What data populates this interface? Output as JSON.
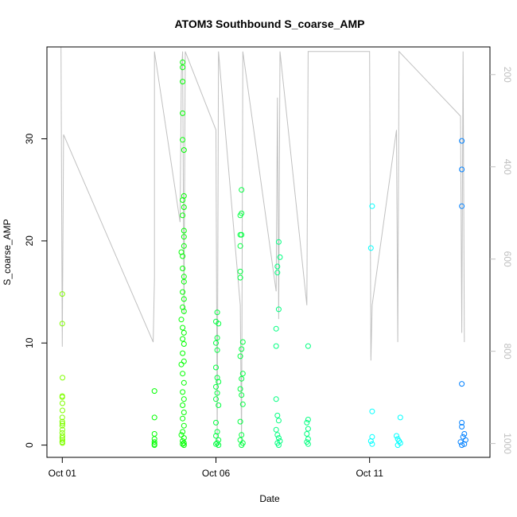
{
  "chart_data": {
    "type": "scatter",
    "title": "ATOM3 Southbound S_coarse_AMP",
    "xlabel": "Date",
    "ylabel": "S_coarse_AMP",
    "xlim": [
      "2016-09-30T12:00",
      "2016-10-14T22:00"
    ],
    "ylim": [
      -1.2,
      39
    ],
    "x_ticks": [
      {
        "date": "2016-10-01T00:00",
        "label": "Oct 01"
      },
      {
        "date": "2016-10-06T00:00",
        "label": "Oct 06"
      },
      {
        "date": "2016-10-11T00:00",
        "label": "Oct 11"
      }
    ],
    "y_ticks": [
      0,
      10,
      20,
      30
    ],
    "y2_label": "",
    "y2_ticks": [
      200,
      400,
      600,
      800,
      1000
    ],
    "y2_lim": [
      1030,
      140
    ],
    "y2_reversed": true,
    "grid": false,
    "legend": "none",
    "marker": "open-circle",
    "colors": {
      "points_by_time": [
        "#80ff00",
        "#00ff00",
        "#00ff80",
        "#00ffff",
        "#0080ff"
      ],
      "secondary_line": "#c0c0c0"
    },
    "series": [
      {
        "color": "#80ff00",
        "points": [
          [
            "2016-10-01T00:00",
            14.8
          ],
          [
            "2016-10-01T00:00",
            11.9
          ],
          [
            "2016-10-01T00:10",
            6.6
          ],
          [
            "2016-10-01T00:00",
            4.8
          ],
          [
            "2016-10-01T00:00",
            4.7
          ],
          [
            "2016-10-01T00:05",
            4.1
          ],
          [
            "2016-10-01T00:05",
            3.4
          ],
          [
            "2016-10-01T00:00",
            2.7
          ],
          [
            "2016-10-01T00:00",
            2.3
          ],
          [
            "2016-10-01T00:05",
            2.1
          ],
          [
            "2016-10-01T00:00",
            1.9
          ],
          [
            "2016-10-01T00:05",
            1.5
          ],
          [
            "2016-10-01T00:00",
            1.2
          ],
          [
            "2016-10-01T00:05",
            0.9
          ],
          [
            "2016-10-01T00:00",
            0.7
          ],
          [
            "2016-10-01T00:05",
            0.5
          ],
          [
            "2016-10-01T00:00",
            0.3
          ],
          [
            "2016-10-01T00:05",
            0.2
          ]
        ]
      },
      {
        "color": "#00ff00",
        "points": [
          [
            "2016-10-04T00:00",
            5.3
          ],
          [
            "2016-10-04T00:00",
            2.7
          ],
          [
            "2016-10-04T00:00",
            1.1
          ],
          [
            "2016-10-04T00:00",
            0.6
          ],
          [
            "2016-10-04T00:00",
            0.3
          ],
          [
            "2016-10-04T00:00",
            0.1
          ],
          [
            "2016-10-04T00:00",
            0.0
          ],
          [
            "2016-10-04T22:00",
            37.5
          ],
          [
            "2016-10-04T22:00",
            37.0
          ],
          [
            "2016-10-04T22:00",
            35.6
          ],
          [
            "2016-10-04T22:00",
            32.5
          ],
          [
            "2016-10-04T22:00",
            29.9
          ],
          [
            "2016-10-04T23:00",
            28.9
          ],
          [
            "2016-10-04T23:00",
            24.4
          ],
          [
            "2016-10-04T22:00",
            24.0
          ],
          [
            "2016-10-04T23:00",
            23.3
          ],
          [
            "2016-10-04T22:00",
            22.5
          ],
          [
            "2016-10-04T23:00",
            21.0
          ],
          [
            "2016-10-04T23:00",
            20.4
          ],
          [
            "2016-10-04T23:00",
            19.5
          ],
          [
            "2016-10-04T21:00",
            18.9
          ],
          [
            "2016-10-04T22:00",
            18.5
          ],
          [
            "2016-10-04T22:00",
            17.3
          ],
          [
            "2016-10-04T23:00",
            16.5
          ],
          [
            "2016-10-04T23:00",
            16.0
          ],
          [
            "2016-10-04T22:00",
            15.0
          ],
          [
            "2016-10-04T23:00",
            14.3
          ],
          [
            "2016-10-04T22:00",
            13.5
          ],
          [
            "2016-10-04T23:00",
            13.1
          ],
          [
            "2016-10-04T21:00",
            12.3
          ],
          [
            "2016-10-04T22:00",
            11.5
          ],
          [
            "2016-10-04T23:00",
            11.0
          ],
          [
            "2016-10-04T22:00",
            10.4
          ],
          [
            "2016-10-04T23:00",
            9.9
          ],
          [
            "2016-10-04T22:00",
            9.0
          ],
          [
            "2016-10-04T23:00",
            8.2
          ],
          [
            "2016-10-04T21:00",
            7.9
          ],
          [
            "2016-10-04T22:00",
            7.0
          ],
          [
            "2016-10-04T23:00",
            6.1
          ],
          [
            "2016-10-04T22:00",
            5.2
          ],
          [
            "2016-10-04T23:00",
            4.5
          ],
          [
            "2016-10-04T22:00",
            3.9
          ],
          [
            "2016-10-04T23:00",
            3.2
          ],
          [
            "2016-10-04T22:00",
            2.6
          ],
          [
            "2016-10-04T23:00",
            1.9
          ],
          [
            "2016-10-04T22:00",
            1.3
          ],
          [
            "2016-10-04T21:00",
            1.0
          ],
          [
            "2016-10-04T23:00",
            0.7
          ],
          [
            "2016-10-04T22:00",
            0.4
          ],
          [
            "2016-10-04T23:00",
            0.2
          ],
          [
            "2016-10-04T22:00",
            0.1
          ],
          [
            "2016-10-04T23:00",
            0.0
          ]
        ]
      },
      {
        "color": "#00ff40",
        "points": [
          [
            "2016-10-06T00:00",
            12.1
          ],
          [
            "2016-10-06T02:00",
            11.9
          ],
          [
            "2016-10-06T01:00",
            13.0
          ],
          [
            "2016-10-06T01:00",
            10.5
          ],
          [
            "2016-10-06T00:00",
            10.0
          ],
          [
            "2016-10-06T01:00",
            9.3
          ],
          [
            "2016-10-06T00:00",
            7.6
          ],
          [
            "2016-10-06T01:00",
            6.6
          ],
          [
            "2016-10-06T02:00",
            6.2
          ],
          [
            "2016-10-06T00:00",
            5.7
          ],
          [
            "2016-10-06T01:00",
            5.1
          ],
          [
            "2016-10-06T00:00",
            4.5
          ],
          [
            "2016-10-06T02:00",
            3.9
          ],
          [
            "2016-10-06T00:00",
            2.2
          ],
          [
            "2016-10-06T01:00",
            1.3
          ],
          [
            "2016-10-06T00:00",
            0.9
          ],
          [
            "2016-10-06T02:00",
            0.5
          ],
          [
            "2016-10-06T01:00",
            0.2
          ],
          [
            "2016-10-06T00:00",
            0.1
          ],
          [
            "2016-10-06T02:00",
            0.0
          ],
          [
            "2016-10-06T20:00",
            25.0
          ],
          [
            "2016-10-06T19:00",
            22.5
          ],
          [
            "2016-10-06T20:00",
            22.7
          ],
          [
            "2016-10-06T19:00",
            20.6
          ],
          [
            "2016-10-06T20:00",
            20.6
          ],
          [
            "2016-10-06T19:00",
            19.5
          ],
          [
            "2016-10-06T19:00",
            17.0
          ],
          [
            "2016-10-06T19:00",
            16.4
          ],
          [
            "2016-10-06T21:00",
            10.1
          ],
          [
            "2016-10-06T20:00",
            9.4
          ],
          [
            "2016-10-06T19:00",
            8.7
          ],
          [
            "2016-10-06T21:00",
            7.0
          ],
          [
            "2016-10-06T20:00",
            6.5
          ],
          [
            "2016-10-06T19:00",
            5.5
          ],
          [
            "2016-10-06T20:00",
            4.9
          ],
          [
            "2016-10-06T21:00",
            4.0
          ],
          [
            "2016-10-06T19:00",
            2.3
          ],
          [
            "2016-10-06T20:00",
            1.0
          ],
          [
            "2016-10-06T19:00",
            0.5
          ],
          [
            "2016-10-06T21:00",
            0.2
          ],
          [
            "2016-10-06T20:00",
            0.0
          ]
        ]
      },
      {
        "color": "#00ff80",
        "points": [
          [
            "2016-10-08T01:00",
            19.9
          ],
          [
            "2016-10-08T02:00",
            18.4
          ],
          [
            "2016-10-08T00:00",
            17.5
          ],
          [
            "2016-10-08T00:00",
            16.9
          ],
          [
            "2016-10-08T01:00",
            13.3
          ],
          [
            "2016-10-07T23:00",
            11.4
          ],
          [
            "2016-10-07T23:00",
            9.7
          ],
          [
            "2016-10-07T23:00",
            4.5
          ],
          [
            "2016-10-08T00:00",
            2.9
          ],
          [
            "2016-10-08T01:00",
            2.4
          ],
          [
            "2016-10-07T23:00",
            1.5
          ],
          [
            "2016-10-08T00:00",
            1.0
          ],
          [
            "2016-10-08T01:00",
            0.7
          ],
          [
            "2016-10-08T02:00",
            0.4
          ],
          [
            "2016-10-08T00:00",
            0.2
          ],
          [
            "2016-10-08T01:00",
            0.0
          ],
          [
            "2016-10-09T00:00",
            9.7
          ],
          [
            "2016-10-09T00:00",
            2.5
          ],
          [
            "2016-10-08T23:00",
            2.2
          ],
          [
            "2016-10-09T00:00",
            1.6
          ],
          [
            "2016-10-08T23:00",
            1.1
          ],
          [
            "2016-10-09T00:00",
            0.6
          ],
          [
            "2016-10-08T23:00",
            0.3
          ],
          [
            "2016-10-09T00:00",
            0.1
          ]
        ]
      },
      {
        "color": "#00ffff",
        "points": [
          [
            "2016-10-11T02:00",
            23.4
          ],
          [
            "2016-10-11T01:00",
            19.3
          ],
          [
            "2016-10-11T02:00",
            3.3
          ],
          [
            "2016-10-11T02:00",
            0.8
          ],
          [
            "2016-10-11T01:00",
            0.4
          ],
          [
            "2016-10-11T02:00",
            0.1
          ],
          [
            "2016-10-12T00:00",
            2.7
          ],
          [
            "2016-10-11T21:00",
            0.9
          ],
          [
            "2016-10-11T22:00",
            0.6
          ],
          [
            "2016-10-11T23:00",
            0.4
          ],
          [
            "2016-10-12T00:00",
            0.2
          ],
          [
            "2016-10-11T22:00",
            0.0
          ]
        ]
      },
      {
        "color": "#0080ff",
        "points": [
          [
            "2016-10-14T00:00",
            29.8
          ],
          [
            "2016-10-14T00:00",
            27.0
          ],
          [
            "2016-10-14T00:00",
            23.4
          ],
          [
            "2016-10-14T00:00",
            6.0
          ],
          [
            "2016-10-14T00:00",
            2.2
          ],
          [
            "2016-10-14T00:00",
            1.8
          ],
          [
            "2016-10-14T02:00",
            1.1
          ],
          [
            "2016-10-14T01:00",
            0.8
          ],
          [
            "2016-10-14T03:00",
            0.5
          ],
          [
            "2016-10-13T23:00",
            0.3
          ],
          [
            "2016-10-14T02:00",
            0.1
          ],
          [
            "2016-10-14T00:00",
            0.0
          ]
        ]
      }
    ],
    "secondary_series": {
      "axis": "right",
      "color": "#c0c0c0",
      "points": [
        [
          "2016-09-30T23:00",
          140
        ],
        [
          "2016-10-01T00:00",
          790
        ],
        [
          "2016-10-01T01:00",
          330
        ],
        [
          "2016-10-03T23:00",
          780
        ],
        [
          "2016-10-04T00:00",
          640
        ],
        [
          "2016-10-04T00:00",
          150
        ],
        [
          "2016-10-04T20:00",
          520
        ],
        [
          "2016-10-04T21:00",
          200
        ],
        [
          "2016-10-04T22:00",
          150
        ],
        [
          "2016-10-04T23:00",
          720
        ],
        [
          "2016-10-05T00:00",
          150
        ],
        [
          "2016-10-06T00:00",
          320
        ],
        [
          "2016-10-06T01:00",
          1010
        ],
        [
          "2016-10-06T02:00",
          150
        ],
        [
          "2016-10-06T19:00",
          700
        ],
        [
          "2016-10-06T20:00",
          1000
        ],
        [
          "2016-10-06T21:00",
          150
        ],
        [
          "2016-10-07T23:00",
          670
        ],
        [
          "2016-10-08T00:00",
          250
        ],
        [
          "2016-10-08T01:00",
          730
        ],
        [
          "2016-10-08T02:00",
          150
        ],
        [
          "2016-10-08T23:00",
          700
        ],
        [
          "2016-10-09T00:00",
          150
        ],
        [
          "2016-10-11T00:00",
          150
        ],
        [
          "2016-10-11T01:00",
          820
        ],
        [
          "2016-10-11T02:00",
          700
        ],
        [
          "2016-10-11T21:00",
          320
        ],
        [
          "2016-10-11T22:00",
          780
        ],
        [
          "2016-10-11T23:00",
          150
        ],
        [
          "2016-10-13T23:00",
          290
        ],
        [
          "2016-10-14T00:00",
          760
        ],
        [
          "2016-10-14T01:00",
          150
        ],
        [
          "2016-10-14T02:00",
          780
        ]
      ]
    }
  }
}
